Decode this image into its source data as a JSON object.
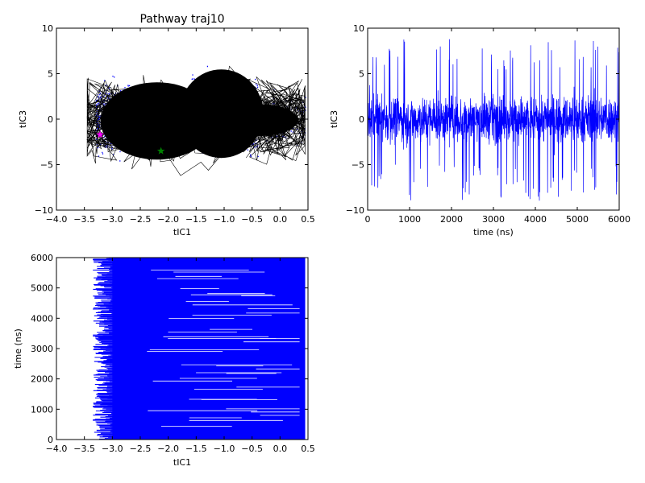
{
  "chart_data": [
    {
      "type": "scatter",
      "title": "Pathway traj10",
      "xlabel": "tIC1",
      "ylabel": "tIC3",
      "xlim": [
        -4.0,
        0.5
      ],
      "ylim": [
        -10,
        10
      ],
      "xticks": [
        -4.0,
        -3.5,
        -3.0,
        -2.5,
        -2.0,
        -1.5,
        -1.0,
        -0.5,
        0.0,
        0.5
      ],
      "xtick_labels": [
        "−4.0",
        "−3.5",
        "−3.0",
        "−2.5",
        "−2.0",
        "−1.5",
        "−1.0",
        "−0.5",
        "0.0",
        "0.5"
      ],
      "yticks": [
        -10,
        -5,
        0,
        5,
        10
      ],
      "ytick_labels": [
        "−10",
        "−5",
        "0",
        "5",
        "10"
      ],
      "point_color": "#0000ff",
      "path_color": "#000000",
      "grid": false,
      "markers": [
        {
          "shape": "star",
          "color": "#ff00ff",
          "x": -3.22,
          "y": -1.7
        },
        {
          "shape": "star",
          "color": "#008000",
          "x": -2.13,
          "y": -3.5
        }
      ]
    },
    {
      "type": "line",
      "title": "",
      "xlabel": "time (ns)",
      "ylabel": "tIC3",
      "xlim": [
        0,
        6000
      ],
      "ylim": [
        -10,
        10
      ],
      "xticks": [
        0,
        1000,
        2000,
        3000,
        4000,
        5000,
        6000
      ],
      "xtick_labels": [
        "0",
        "1000",
        "2000",
        "3000",
        "4000",
        "5000",
        "6000"
      ],
      "yticks": [
        -10,
        -5,
        0,
        5,
        10
      ],
      "ytick_labels": [
        "−10",
        "−5",
        "0",
        "5",
        "10"
      ],
      "line_color": "#0000ff",
      "grid": false
    },
    {
      "type": "line",
      "title": "",
      "xlabel": "tIC1",
      "ylabel": "time (ns)",
      "xlim": [
        -4.0,
        0.5
      ],
      "ylim": [
        0,
        6000
      ],
      "xticks": [
        -4.0,
        -3.5,
        -3.0,
        -2.5,
        -2.0,
        -1.5,
        -1.0,
        -0.5,
        0.0,
        0.5
      ],
      "xtick_labels": [
        "−4.0",
        "−3.5",
        "−3.0",
        "−2.5",
        "−2.0",
        "−1.5",
        "−1.0",
        "−0.5",
        "0.0",
        "0.5"
      ],
      "yticks": [
        0,
        1000,
        2000,
        3000,
        4000,
        5000,
        6000
      ],
      "ytick_labels": [
        "0",
        "1000",
        "2000",
        "3000",
        "4000",
        "5000",
        "6000"
      ],
      "line_color": "#0000ff",
      "grid": false
    }
  ]
}
